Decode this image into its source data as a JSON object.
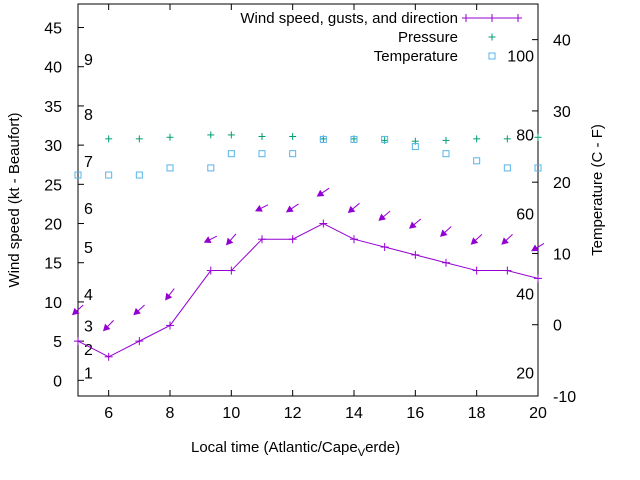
{
  "chart_data": {
    "type": "line",
    "title": "",
    "xlabel_main": "Local time (Atlantic/Cape",
    "xlabel_sub": "V",
    "xlabel_tail": "erde)",
    "ylabel": "Wind speed (kt - Beaufort)",
    "y2label": "Temperature (C - F)",
    "xlim": [
      5,
      20
    ],
    "ylim": [
      -2,
      48
    ],
    "y2lim": [
      -10,
      45
    ],
    "x_ticks": [
      "6",
      "8",
      "10",
      "12",
      "14",
      "16",
      "18",
      "20"
    ],
    "y_ticks": [
      "0",
      "5",
      "10",
      "15",
      "20",
      "25",
      "30",
      "35",
      "40",
      "45"
    ],
    "y2_ticks": [
      "-10",
      "0",
      "10",
      "20",
      "30",
      "40"
    ],
    "beaufort_labels": [
      {
        "text": "1",
        "kt": 1
      },
      {
        "text": "2",
        "kt": 4
      },
      {
        "text": "3",
        "kt": 7
      },
      {
        "text": "4",
        "kt": 11
      },
      {
        "text": "5",
        "kt": 17
      },
      {
        "text": "6",
        "kt": 22
      },
      {
        "text": "7",
        "kt": 28
      },
      {
        "text": "8",
        "kt": 34
      },
      {
        "text": "9",
        "kt": 41
      }
    ],
    "fahrenheit_labels": [
      {
        "text": "20",
        "c": -6.7
      },
      {
        "text": "40",
        "c": 4.4
      },
      {
        "text": "60",
        "c": 15.6
      },
      {
        "text": "80",
        "c": 26.7
      },
      {
        "text": "100",
        "c": 37.8
      }
    ],
    "legend": [
      {
        "label": "Wind speed, gusts, and direction",
        "color": "#9400d3",
        "marker": "plus-line"
      },
      {
        "label": "Pressure",
        "color": "#009e73",
        "marker": "plus"
      },
      {
        "label": "Temperature",
        "color": "#56b4e9",
        "marker": "square"
      }
    ],
    "series": [
      {
        "name": "Wind speed",
        "color": "#9400d3",
        "x": [
          5,
          6,
          7,
          8,
          9.33,
          10,
          11,
          12,
          13,
          14,
          15,
          16,
          17,
          18,
          19,
          20
        ],
        "values": [
          5,
          3,
          5,
          7,
          14,
          14,
          18,
          18,
          20,
          18,
          17,
          16,
          15,
          14,
          14,
          13
        ]
      },
      {
        "name": "Wind direction arrows",
        "color": "#9400d3",
        "x": [
          5,
          6,
          7,
          8,
          9.33,
          10,
          11,
          12,
          13,
          14,
          15,
          16,
          17,
          18,
          19,
          20
        ],
        "kt_level": [
          9,
          7,
          9,
          11,
          18,
          18,
          22,
          22,
          24,
          22,
          21,
          20,
          19,
          18,
          18,
          17
        ],
        "direction_deg": [
          60,
          55,
          60,
          45,
          90,
          50,
          90,
          75,
          75,
          65,
          65,
          65,
          60,
          60,
          60,
          80
        ]
      },
      {
        "name": "Pressure",
        "color": "#009e73",
        "x": [
          6,
          7,
          8,
          9.33,
          10,
          11,
          12,
          13,
          14,
          15,
          16,
          17,
          18,
          19,
          20
        ],
        "values": [
          30.8,
          30.8,
          31.0,
          31.3,
          31.3,
          31.1,
          31.1,
          30.8,
          30.8,
          30.6,
          30.5,
          30.6,
          30.8,
          30.8,
          31.0
        ]
      },
      {
        "name": "Temperature",
        "color": "#56b4e9",
        "x": [
          5,
          6,
          7,
          8,
          9.33,
          10,
          11,
          12,
          13,
          14,
          15,
          16,
          17,
          18,
          19,
          20
        ],
        "values": [
          21,
          21,
          21,
          22,
          22,
          24,
          24,
          24,
          26,
          26,
          26,
          25,
          24,
          23,
          22,
          22
        ]
      }
    ]
  }
}
